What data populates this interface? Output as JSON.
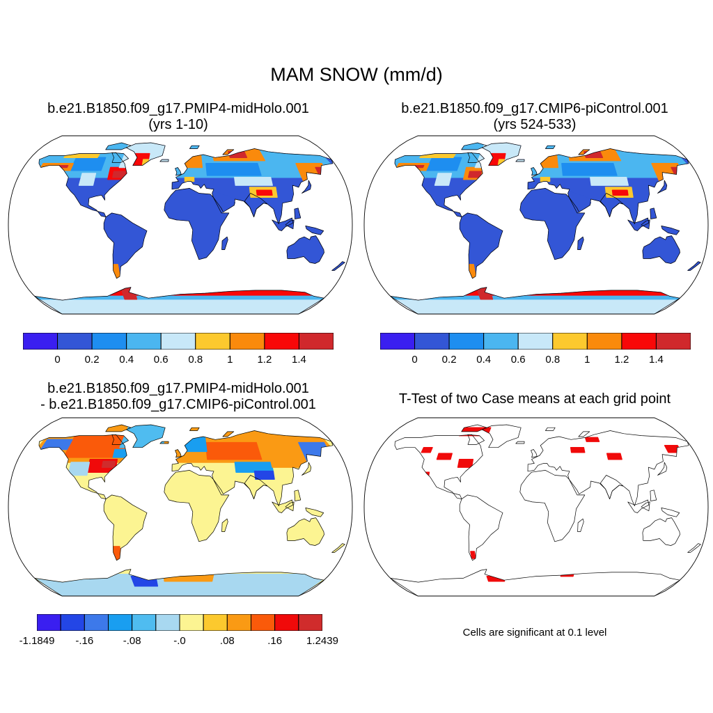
{
  "figure": {
    "title": "MAM SNOW (mm/d)"
  },
  "panels": {
    "top_left": {
      "title_line1": "b.e21.B1850.f09_g17.PMIP4-midHolo.001",
      "title_line2": "(yrs 1-10)"
    },
    "top_right": {
      "title_line1": "b.e21.B1850.f09_g17.CMIP6-piControl.001",
      "title_line2": "(yrs 524-533)"
    },
    "bottom_left": {
      "title_line1": "b.e21.B1850.f09_g17.PMIP4-midHolo.001",
      "title_line2": "- b.e21.B1850.f09_g17.CMIP6-piControl.001"
    },
    "bottom_right": {
      "title_line1": "T-Test of two Case means at each grid point",
      "note": "Cells are significant at 0.1 level"
    }
  },
  "colorbars": {
    "mean": {
      "colors": [
        "#3a1ff0",
        "#3356d6",
        "#1e8ef0",
        "#4bb6f0",
        "#c8e8f8",
        "#fcc92e",
        "#fa8a0c",
        "#f80808",
        "#d0282c"
      ],
      "labels": [
        "0",
        "0.2",
        "0.4",
        "0.6",
        "0.8",
        "1",
        "1.2",
        "1.4"
      ]
    },
    "diff": {
      "colors": [
        "#3a1ff0",
        "#2346e6",
        "#3d79ea",
        "#199ef0",
        "#4fbcf0",
        "#a8d8f0",
        "#fcf492",
        "#fcc92e",
        "#fa9a14",
        "#fa5a0a",
        "#f00a0a",
        "#d02c2c"
      ],
      "labels": [
        "-1.1849",
        "-.16",
        "-.08",
        "-.0",
        ".08",
        ".16",
        "1.2439"
      ]
    }
  },
  "map_fills": {
    "mean_land": "#3356d6",
    "diff_land": "#fcf492",
    "significant": "#f00a0a",
    "coast": "#000000"
  }
}
